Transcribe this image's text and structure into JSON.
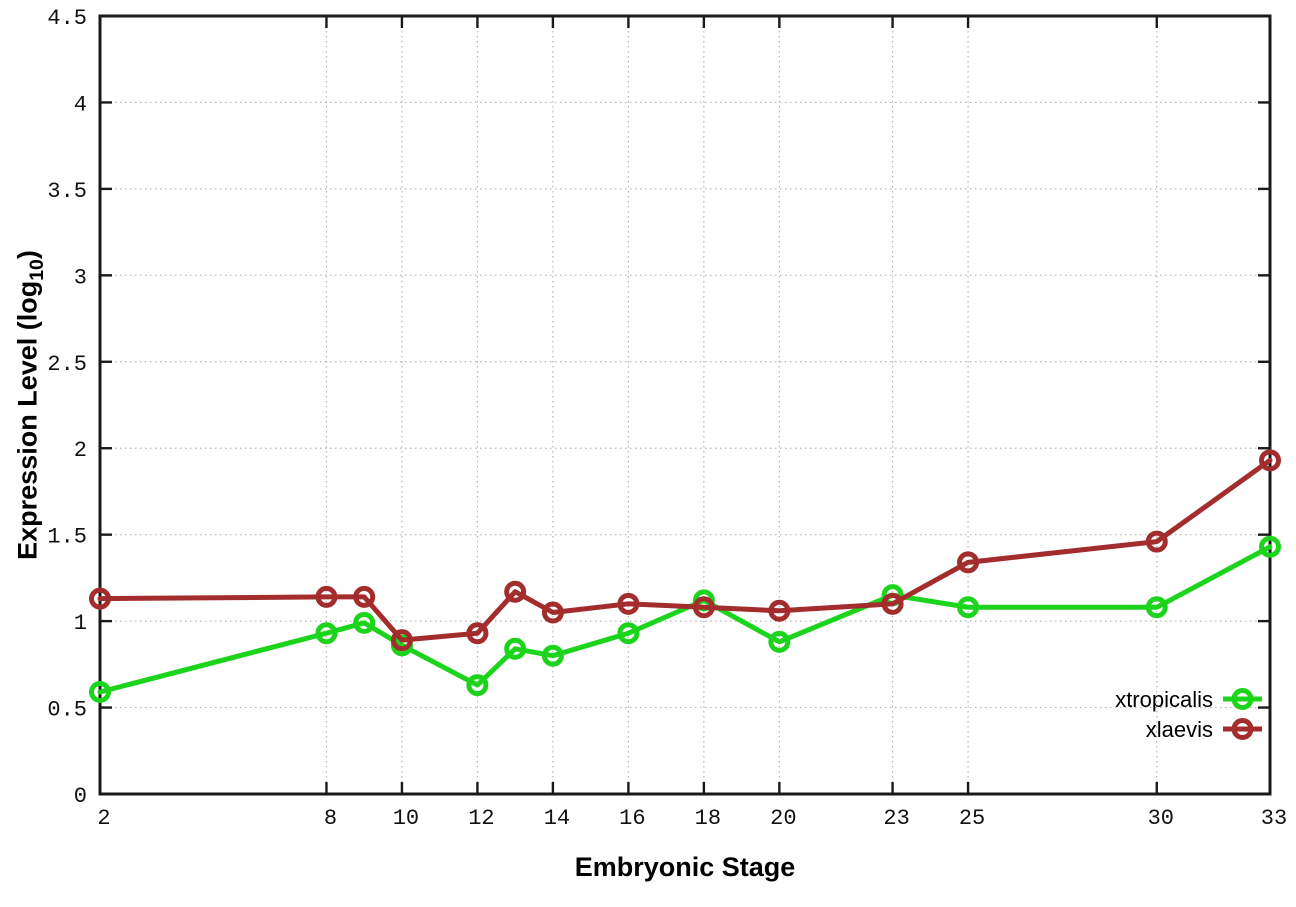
{
  "chart_data": {
    "type": "line",
    "title": "",
    "xlabel": "Embryonic Stage",
    "ylabel": "Expression Level (log10)",
    "ylabel_parts": {
      "base": "Expression Level (log",
      "subscript": "10",
      "close": ")"
    },
    "x": [
      2,
      8,
      9,
      10,
      12,
      13,
      14,
      16,
      18,
      20,
      23,
      25,
      30,
      33
    ],
    "series": [
      {
        "name": "xtropicalis",
        "color": "#1bd41b",
        "values": [
          0.59,
          0.93,
          0.99,
          0.86,
          0.63,
          0.84,
          0.8,
          0.93,
          1.12,
          0.88,
          1.15,
          1.08,
          1.08,
          1.43
        ]
      },
      {
        "name": "xlaevis",
        "color": "#a32c2c",
        "values": [
          1.13,
          1.14,
          1.14,
          0.89,
          0.93,
          1.17,
          1.05,
          1.1,
          1.08,
          1.06,
          1.1,
          1.34,
          1.46,
          1.93
        ]
      }
    ],
    "xlim": [
      2,
      33
    ],
    "ylim": [
      0,
      4.5
    ],
    "xticks": [
      2,
      8,
      10,
      12,
      14,
      16,
      18,
      20,
      23,
      25,
      30,
      33
    ],
    "yticks": [
      0,
      0.5,
      1,
      1.5,
      2,
      2.5,
      3,
      3.5,
      4,
      4.5
    ],
    "grid": true,
    "legend_position": "bottom-right",
    "marker": "open-circle",
    "colors": {
      "background": "#ffffff",
      "border": "#1a1a1a",
      "grid": "#b5b5b5",
      "tick_text": "#111111"
    }
  }
}
